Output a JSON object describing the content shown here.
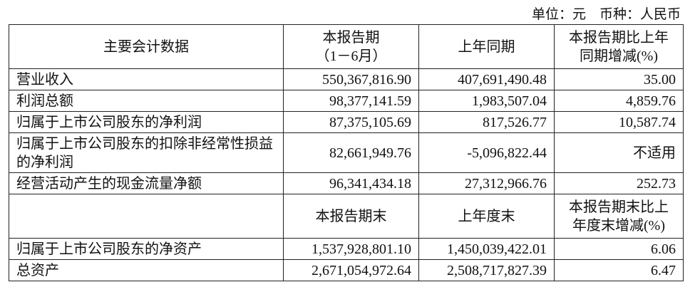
{
  "unit_note": "单位：元　币种：人民币",
  "header": [
    "主要会计数据",
    "本报告期\n（1－6月）",
    "上年同期",
    "本报告期比上年\n同期增减(%)"
  ],
  "rows": [
    [
      "营业收入",
      "550,367,816.90",
      "407,691,490.48",
      "35.00"
    ],
    [
      "利润总额",
      "98,377,141.59",
      "1,983,507.04",
      "4,859.76"
    ],
    [
      "归属于上市公司股东的净利润",
      "87,375,105.69",
      "817,526.77",
      "10,587.74"
    ],
    [
      "归属于上市公司股东的扣除非经常性损益的净利润",
      "82,661,949.76",
      "-5,096,822.44",
      "不适用"
    ],
    [
      "经营活动产生的现金流量净额",
      "96,341,434.18",
      "27,312,966.76",
      "252.73"
    ]
  ],
  "header2": [
    "",
    "本报告期末",
    "上年度末",
    "本报告期末比上\n年度末增减(%)"
  ],
  "rows2": [
    [
      "归属于上市公司股东的净资产",
      "1,537,928,801.10",
      "1,450,039,422.01",
      "6.06"
    ],
    [
      "总资产",
      "2,671,054,972.64",
      "2,508,717,827.39",
      "6.47"
    ]
  ]
}
